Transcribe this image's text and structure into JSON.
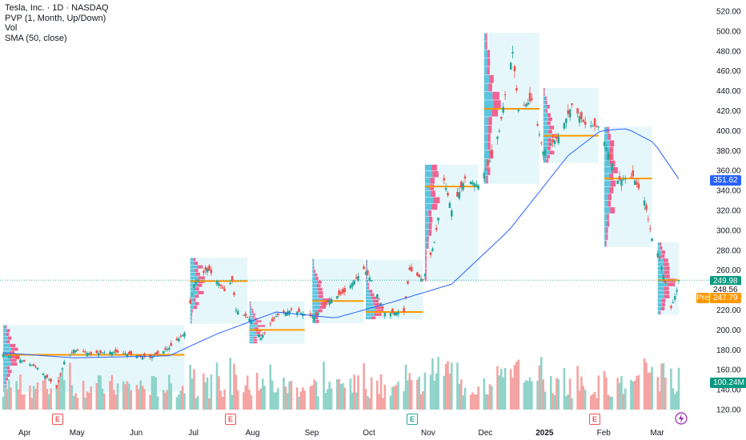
{
  "legend": {
    "symbol": "Tesla, Inc. · 1D · NASDAQ",
    "pvp": "PVP (1, Month, Up/Down)",
    "vol": "Vol",
    "sma": "SMA (50, close)"
  },
  "price_tags": {
    "last": "249.98",
    "sma": "351.62",
    "close": "248.56",
    "pre": "247.79",
    "pre_label": "Pre",
    "volume": "100.24M"
  },
  "earnings_markers": [
    "E",
    "E",
    "E",
    "E"
  ],
  "colors": {
    "up": "#26a69a",
    "down": "#ef5350",
    "up_volume": "#8fd3c9",
    "down_volume": "#f4a4a2",
    "sma_line": "#2962ff",
    "poc": "#ff9800",
    "profile_bg": "#e6f7fb",
    "profile_up": "#5bc4de",
    "profile_down": "#f06292",
    "last_tag": "#089981",
    "sma_tag": "#2962ff",
    "vol_tag": "#089981"
  },
  "chart_data": {
    "type": "candlestick",
    "y_ticks": [
      "520.00",
      "500.00",
      "480.00",
      "460.00",
      "440.00",
      "420.00",
      "400.00",
      "380.00",
      "360.00",
      "340.00",
      "320.00",
      "300.00",
      "280.00",
      "260.00",
      "240.00",
      "220.00",
      "200.00",
      "180.00",
      "160.00",
      "140.00",
      "120.00"
    ],
    "x_ticks": [
      "Apr",
      "May",
      "Jun",
      "Jul",
      "Aug",
      "Sep",
      "Oct",
      "Nov",
      "Dec",
      "2025",
      "Feb",
      "Mar"
    ],
    "price_anchors": [
      {
        "date": "2024-03-25",
        "close": 176
      },
      {
        "date": "2024-04-03",
        "close": 170
      },
      {
        "date": "2024-04-12",
        "close": 162
      },
      {
        "date": "2024-04-22",
        "close": 142
      },
      {
        "date": "2024-04-26",
        "close": 168
      },
      {
        "date": "2024-05-01",
        "close": 180
      },
      {
        "date": "2024-05-10",
        "close": 176
      },
      {
        "date": "2024-05-20",
        "close": 178
      },
      {
        "date": "2024-05-30",
        "close": 176
      },
      {
        "date": "2024-06-10",
        "close": 172
      },
      {
        "date": "2024-06-20",
        "close": 182
      },
      {
        "date": "2024-06-28",
        "close": 197
      },
      {
        "date": "2024-07-03",
        "close": 246
      },
      {
        "date": "2024-07-10",
        "close": 262
      },
      {
        "date": "2024-07-19",
        "close": 239
      },
      {
        "date": "2024-07-23",
        "close": 250
      },
      {
        "date": "2024-07-25",
        "close": 220
      },
      {
        "date": "2024-08-02",
        "close": 210
      },
      {
        "date": "2024-08-07",
        "close": 192
      },
      {
        "date": "2024-08-15",
        "close": 214
      },
      {
        "date": "2024-08-23",
        "close": 220
      },
      {
        "date": "2024-09-04",
        "close": 213
      },
      {
        "date": "2024-09-12",
        "close": 230
      },
      {
        "date": "2024-09-20",
        "close": 238
      },
      {
        "date": "2024-09-30",
        "close": 261
      },
      {
        "date": "2024-10-04",
        "close": 250
      },
      {
        "date": "2024-10-11",
        "close": 217
      },
      {
        "date": "2024-10-21",
        "close": 218
      },
      {
        "date": "2024-10-24",
        "close": 260
      },
      {
        "date": "2024-10-31",
        "close": 250
      },
      {
        "date": "2024-11-06",
        "close": 288
      },
      {
        "date": "2024-11-11",
        "close": 350
      },
      {
        "date": "2024-11-15",
        "close": 320
      },
      {
        "date": "2024-11-22",
        "close": 352
      },
      {
        "date": "2024-11-29",
        "close": 345
      },
      {
        "date": "2024-12-05",
        "close": 370
      },
      {
        "date": "2024-12-10",
        "close": 400
      },
      {
        "date": "2024-12-13",
        "close": 436
      },
      {
        "date": "2024-12-17",
        "close": 479
      },
      {
        "date": "2024-12-20",
        "close": 421
      },
      {
        "date": "2024-12-27",
        "close": 431
      },
      {
        "date": "2025-01-02",
        "close": 379
      },
      {
        "date": "2025-01-10",
        "close": 394
      },
      {
        "date": "2025-01-17",
        "close": 426
      },
      {
        "date": "2025-01-24",
        "close": 406
      },
      {
        "date": "2025-01-31",
        "close": 404
      },
      {
        "date": "2025-02-05",
        "close": 378
      },
      {
        "date": "2025-02-10",
        "close": 350
      },
      {
        "date": "2025-02-18",
        "close": 354
      },
      {
        "date": "2025-02-24",
        "close": 330
      },
      {
        "date": "2025-02-28",
        "close": 292
      },
      {
        "date": "2025-03-04",
        "close": 272
      },
      {
        "date": "2025-03-10",
        "close": 222
      },
      {
        "date": "2025-03-13",
        "close": 240
      },
      {
        "date": "2025-03-14",
        "close": 249.98
      }
    ],
    "sma50_anchors": [
      {
        "date": "2024-03-25",
        "value": 177
      },
      {
        "date": "2024-05-01",
        "value": 172
      },
      {
        "date": "2024-06-20",
        "value": 174
      },
      {
        "date": "2024-07-15",
        "value": 196
      },
      {
        "date": "2024-08-15",
        "value": 218
      },
      {
        "date": "2024-09-15",
        "value": 212
      },
      {
        "date": "2024-10-15",
        "value": 228
      },
      {
        "date": "2024-11-15",
        "value": 246
      },
      {
        "date": "2024-12-15",
        "value": 300
      },
      {
        "date": "2025-01-15",
        "value": 375
      },
      {
        "date": "2025-02-01",
        "value": 400
      },
      {
        "date": "2025-02-15",
        "value": 402
      },
      {
        "date": "2025-03-01",
        "value": 388
      },
      {
        "date": "2025-03-14",
        "value": 351.62
      }
    ],
    "monthly_poc": [
      {
        "from": "2024-03-25",
        "to": "2024-06-28",
        "value": 175
      },
      {
        "from": "2024-07-01",
        "to": "2024-07-31",
        "value": 249
      },
      {
        "from": "2024-08-01",
        "to": "2024-08-30",
        "value": 200
      },
      {
        "from": "2024-09-03",
        "to": "2024-09-30",
        "value": 229
      },
      {
        "from": "2024-10-01",
        "to": "2024-10-31",
        "value": 218
      },
      {
        "from": "2024-11-01",
        "to": "2024-11-29",
        "value": 344
      },
      {
        "from": "2024-12-02",
        "to": "2024-12-31",
        "value": 422
      },
      {
        "from": "2025-01-02",
        "to": "2025-01-31",
        "value": 395
      },
      {
        "from": "2025-02-03",
        "to": "2025-02-28",
        "value": 352
      },
      {
        "from": "2025-03-03",
        "to": "2025-03-14",
        "value": 250
      }
    ],
    "volume_range_millions": [
      60,
      190
    ],
    "last_volume_millions": 100.24,
    "y_range": [
      110,
      525
    ],
    "grid": false
  }
}
